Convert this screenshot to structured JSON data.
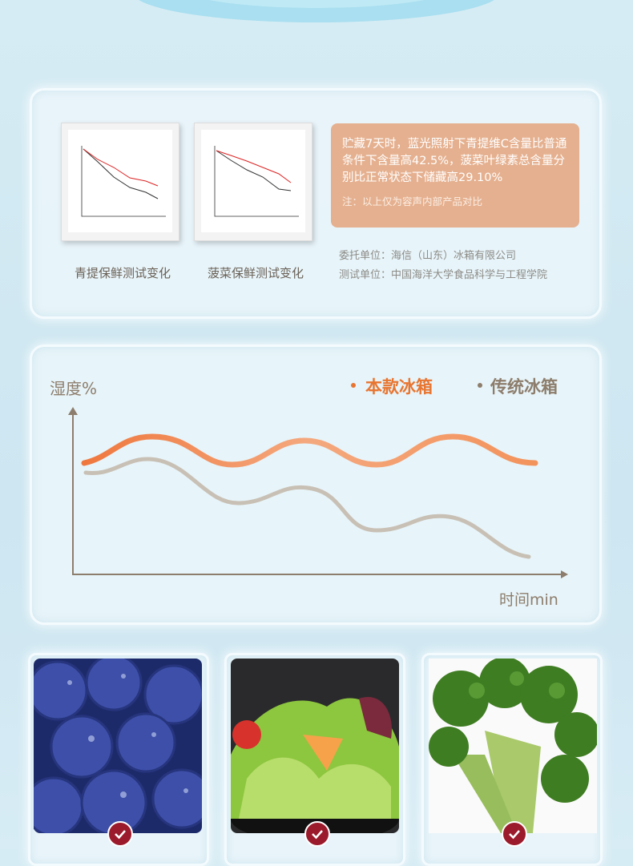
{
  "panel_test": {
    "captions": [
      "青提保鲜测试变化",
      "菠菜保鲜测试变化"
    ],
    "note": {
      "text": "贮藏7天时，蓝光照射下青提维C含量比普通条件下含量高42.5%，菠菜叶绿素总含量分别比正常状态下储藏高29.10%",
      "disclaimer": "注：以上仅为容声内部产品对比"
    },
    "credits": [
      "委托单位：海信（山东）冰箱有限公司",
      "测试单位：中国海洋大学食品科学与工程学院"
    ]
  },
  "panel_humidity": {
    "y_label": "湿度%",
    "legend": [
      "本款冰箱",
      "传统冰箱"
    ],
    "x_label": "时间min"
  }
}
